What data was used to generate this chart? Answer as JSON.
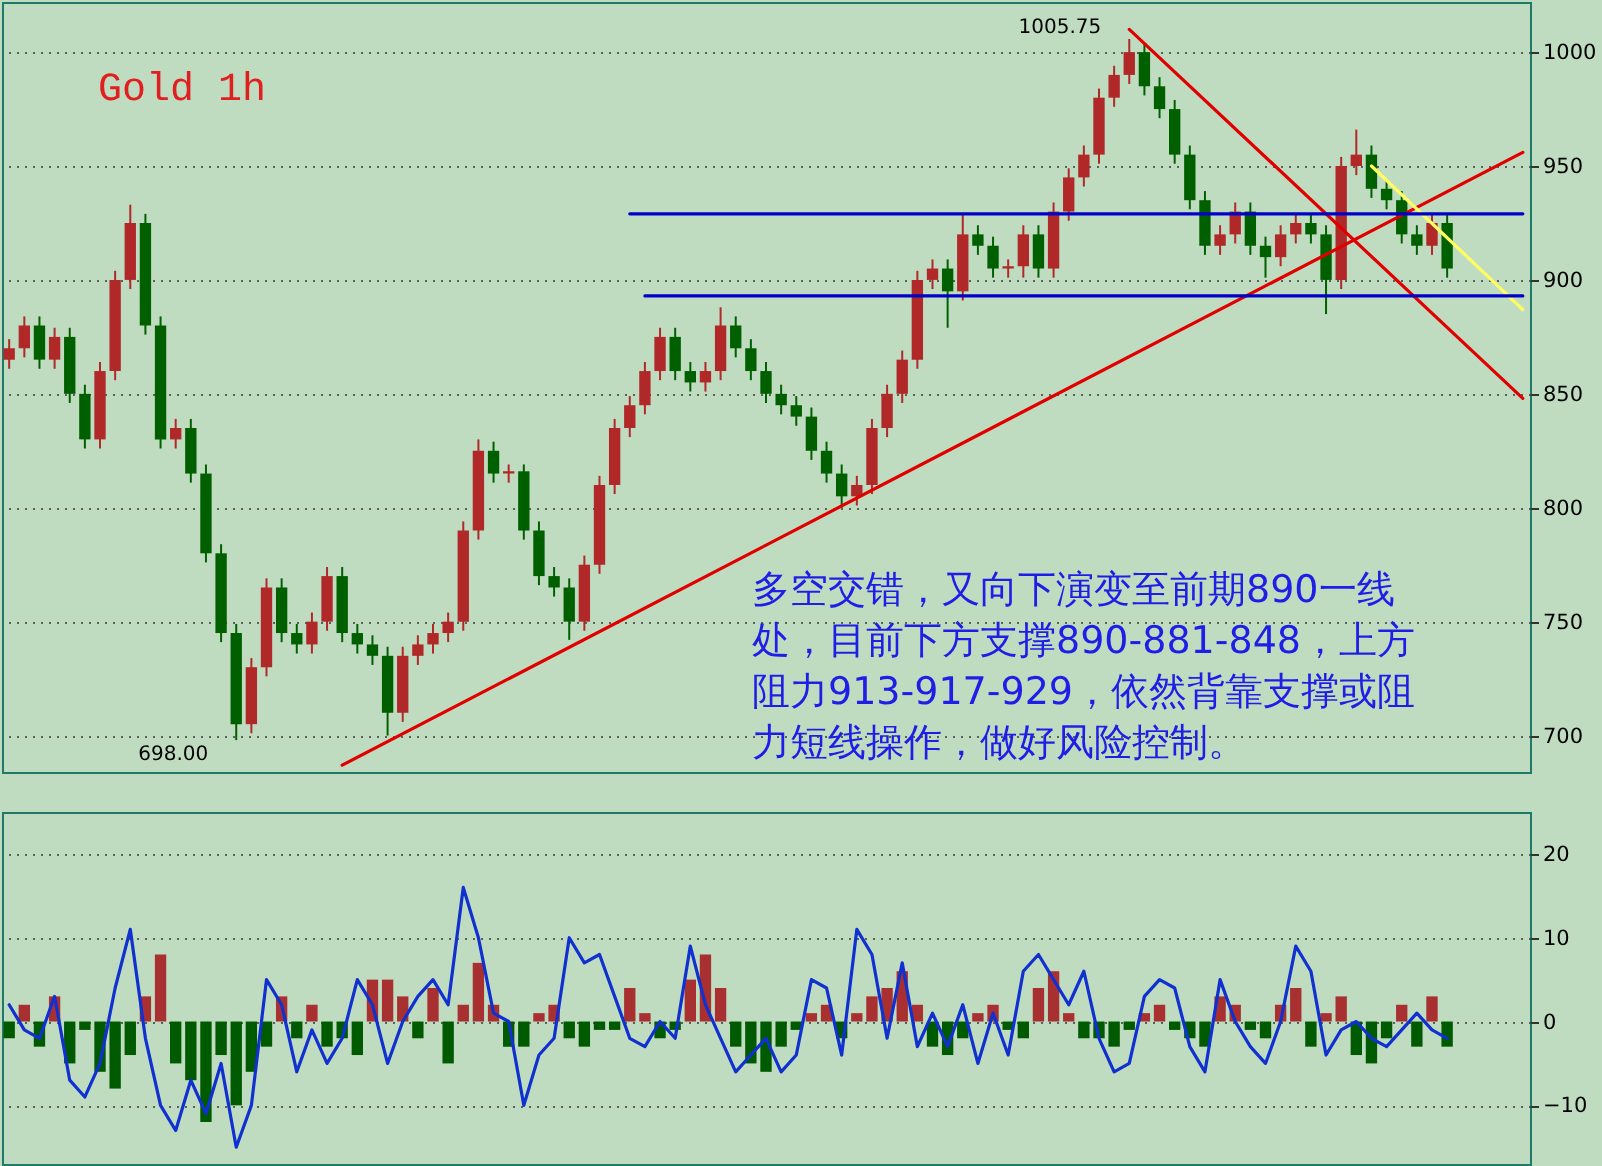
{
  "chart_data": [
    {
      "type": "candlestick",
      "categories": [
        null,
        null,
        null,
        null,
        null,
        null,
        null,
        null,
        null,
        null,
        null,
        null,
        null,
        null,
        null,
        null,
        null,
        null,
        null,
        null,
        null,
        null,
        null,
        null,
        null,
        null,
        null,
        null,
        null,
        null,
        null,
        null,
        null,
        null,
        null,
        null,
        null,
        null,
        null,
        null,
        null,
        null,
        null,
        null,
        null,
        null,
        null,
        null,
        null,
        null,
        null,
        null,
        null,
        null,
        null,
        null,
        null,
        null,
        null,
        null,
        null,
        null,
        null,
        null,
        null,
        null,
        null,
        null,
        null,
        null,
        null,
        null,
        null,
        null,
        null,
        null,
        null,
        null,
        null,
        null,
        null,
        null,
        null,
        null,
        null,
        null,
        null,
        null,
        null,
        null,
        null,
        null,
        null,
        null,
        null,
        null,
        null,
        null,
        null,
        null,
        null
      ],
      "ohlc": [
        [
          865,
          874,
          861,
          870
        ],
        [
          870,
          884,
          866,
          880
        ],
        [
          880,
          884,
          861,
          865
        ],
        [
          865,
          879,
          861,
          875
        ],
        [
          875,
          879,
          846,
          850
        ],
        [
          850,
          854,
          826,
          830
        ],
        [
          830,
          864,
          826,
          860
        ],
        [
          860,
          904,
          856,
          900
        ],
        [
          900,
          933,
          896,
          925
        ],
        [
          925,
          929,
          876,
          880
        ],
        [
          880,
          884,
          826,
          830
        ],
        [
          830,
          839,
          826,
          835
        ],
        [
          835,
          839,
          811,
          815
        ],
        [
          815,
          819,
          776,
          780
        ],
        [
          780,
          784,
          741,
          745
        ],
        [
          745,
          749,
          698,
          705
        ],
        [
          705,
          734,
          701,
          730
        ],
        [
          730,
          769,
          726,
          765
        ],
        [
          765,
          769,
          741,
          745
        ],
        [
          745,
          749,
          736,
          740
        ],
        [
          740,
          754,
          736,
          750
        ],
        [
          750,
          774,
          746,
          770
        ],
        [
          770,
          774,
          741,
          745
        ],
        [
          745,
          749,
          736,
          740
        ],
        [
          740,
          744,
          731,
          735
        ],
        [
          735,
          739,
          700,
          710
        ],
        [
          710,
          739,
          706,
          735
        ],
        [
          735,
          744,
          731,
          740
        ],
        [
          740,
          749,
          736,
          745
        ],
        [
          745,
          754,
          741,
          750
        ],
        [
          750,
          794,
          746,
          790
        ],
        [
          790,
          830,
          786,
          825
        ],
        [
          825,
          829,
          811,
          815
        ],
        [
          815,
          819,
          811,
          816
        ],
        [
          816,
          819,
          786,
          790
        ],
        [
          790,
          794,
          766,
          770
        ],
        [
          770,
          774,
          761,
          765
        ],
        [
          765,
          769,
          742,
          750
        ],
        [
          750,
          779,
          746,
          775
        ],
        [
          775,
          814,
          771,
          810
        ],
        [
          810,
          839,
          806,
          835
        ],
        [
          835,
          849,
          831,
          845
        ],
        [
          845,
          864,
          841,
          860
        ],
        [
          860,
          879,
          856,
          875
        ],
        [
          875,
          879,
          856,
          860
        ],
        [
          860,
          864,
          851,
          855
        ],
        [
          855,
          864,
          851,
          860
        ],
        [
          860,
          888,
          856,
          880
        ],
        [
          880,
          884,
          866,
          870
        ],
        [
          870,
          874,
          856,
          860
        ],
        [
          860,
          864,
          846,
          850
        ],
        [
          850,
          854,
          841,
          845
        ],
        [
          845,
          849,
          836,
          840
        ],
        [
          840,
          844,
          821,
          825
        ],
        [
          825,
          829,
          811,
          815
        ],
        [
          815,
          819,
          800,
          805
        ],
        [
          805,
          814,
          801,
          810
        ],
        [
          810,
          839,
          806,
          835
        ],
        [
          835,
          854,
          831,
          850
        ],
        [
          850,
          869,
          846,
          865
        ],
        [
          865,
          904,
          861,
          900
        ],
        [
          900,
          909,
          896,
          905
        ],
        [
          905,
          909,
          879,
          895
        ],
        [
          895,
          929,
          891,
          920
        ],
        [
          920,
          924,
          911,
          915
        ],
        [
          915,
          919,
          901,
          905
        ],
        [
          905,
          909,
          901,
          906
        ],
        [
          906,
          924,
          901,
          920
        ],
        [
          920,
          924,
          901,
          905
        ],
        [
          905,
          934,
          901,
          930
        ],
        [
          930,
          949,
          926,
          945
        ],
        [
          945,
          959,
          941,
          955
        ],
        [
          955,
          984,
          951,
          980
        ],
        [
          980,
          994,
          976,
          990
        ],
        [
          990,
          1005.75,
          986,
          1000
        ],
        [
          1000,
          1004,
          981,
          985
        ],
        [
          985,
          989,
          971,
          975
        ],
        [
          975,
          979,
          951,
          955
        ],
        [
          955,
          959,
          931,
          935
        ],
        [
          935,
          939,
          911,
          915
        ],
        [
          915,
          924,
          911,
          920
        ],
        [
          920,
          934,
          916,
          930
        ],
        [
          930,
          934,
          911,
          915
        ],
        [
          915,
          919,
          901,
          910
        ],
        [
          910,
          924,
          906,
          920
        ],
        [
          920,
          929,
          916,
          925
        ],
        [
          925,
          929,
          916,
          920
        ],
        [
          920,
          924,
          885,
          900
        ],
        [
          900,
          954,
          896,
          950
        ],
        [
          950,
          966,
          946,
          955
        ],
        [
          955,
          959,
          936,
          940
        ],
        [
          940,
          944,
          931,
          935
        ],
        [
          935,
          939,
          916,
          920
        ],
        [
          920,
          924,
          911,
          915
        ],
        [
          915,
          929,
          911,
          925
        ],
        [
          925,
          929,
          901,
          905
        ],
        null,
        null,
        null,
        null,
        null
      ],
      "series": [
        {
          "type": "line",
          "color": "#e00000",
          "values": [
            null,
            null,
            null,
            null,
            null,
            null,
            null,
            null,
            null,
            null,
            null,
            null,
            null,
            null,
            null,
            null,
            null,
            null,
            null,
            null,
            null,
            null,
            687,
            null,
            null,
            null,
            null,
            null,
            null,
            null,
            null,
            null,
            null,
            null,
            null,
            null,
            null,
            null,
            null,
            null,
            null,
            null,
            null,
            null,
            null,
            null,
            null,
            null,
            null,
            null,
            null,
            null,
            null,
            null,
            null,
            null,
            null,
            null,
            null,
            null,
            null,
            null,
            null,
            null,
            null,
            null,
            null,
            null,
            null,
            null,
            null,
            null,
            null,
            null,
            null,
            null,
            null,
            null,
            null,
            null,
            null,
            null,
            null,
            null,
            null,
            null,
            null,
            null,
            null,
            null,
            null,
            null,
            null,
            null,
            null,
            null,
            null,
            null,
            null,
            null,
            956
          ]
        },
        {
          "type": "line",
          "color": "#e00000",
          "values": [
            null,
            null,
            null,
            null,
            null,
            null,
            null,
            null,
            null,
            null,
            null,
            null,
            null,
            null,
            null,
            null,
            null,
            null,
            null,
            null,
            null,
            null,
            null,
            null,
            null,
            null,
            null,
            null,
            null,
            null,
            null,
            null,
            null,
            null,
            null,
            null,
            null,
            null,
            null,
            null,
            null,
            null,
            null,
            null,
            null,
            null,
            null,
            null,
            null,
            null,
            null,
            null,
            null,
            null,
            null,
            null,
            null,
            null,
            null,
            null,
            null,
            null,
            null,
            null,
            null,
            null,
            null,
            null,
            null,
            null,
            null,
            null,
            null,
            null,
            1010,
            null,
            null,
            null,
            null,
            null,
            null,
            null,
            null,
            null,
            null,
            null,
            null,
            null,
            null,
            null,
            null,
            null,
            null,
            null,
            null,
            null,
            null,
            null,
            null,
            null,
            848
          ]
        },
        {
          "type": "line",
          "color": "#ffff60",
          "values": [
            null,
            null,
            null,
            null,
            null,
            null,
            null,
            null,
            null,
            null,
            null,
            null,
            null,
            null,
            null,
            null,
            null,
            null,
            null,
            null,
            null,
            null,
            null,
            null,
            null,
            null,
            null,
            null,
            null,
            null,
            null,
            null,
            null,
            null,
            null,
            null,
            null,
            null,
            null,
            null,
            null,
            null,
            null,
            null,
            null,
            null,
            null,
            null,
            null,
            null,
            null,
            null,
            null,
            null,
            null,
            null,
            null,
            null,
            null,
            null,
            null,
            null,
            null,
            null,
            null,
            null,
            null,
            null,
            null,
            null,
            null,
            null,
            null,
            null,
            null,
            null,
            null,
            null,
            null,
            null,
            null,
            null,
            null,
            null,
            null,
            null,
            null,
            null,
            null,
            null,
            950,
            null,
            null,
            null,
            null,
            null,
            null,
            null,
            null,
            null,
            887
          ]
        },
        {
          "type": "line",
          "color": "#0000c8",
          "values": [
            null,
            null,
            null,
            null,
            null,
            null,
            null,
            null,
            null,
            null,
            null,
            null,
            null,
            null,
            null,
            null,
            null,
            null,
            null,
            null,
            null,
            null,
            null,
            null,
            null,
            null,
            null,
            null,
            null,
            null,
            null,
            null,
            null,
            null,
            null,
            null,
            null,
            null,
            null,
            null,
            null,
            929,
            null,
            null,
            null,
            null,
            null,
            null,
            null,
            null,
            null,
            null,
            null,
            null,
            null,
            null,
            null,
            null,
            null,
            null,
            null,
            null,
            null,
            null,
            null,
            null,
            null,
            null,
            null,
            null,
            null,
            null,
            null,
            null,
            null,
            null,
            null,
            null,
            null,
            null,
            null,
            null,
            null,
            null,
            null,
            null,
            null,
            null,
            null,
            null,
            null,
            null,
            null,
            null,
            null,
            null,
            null,
            null,
            null,
            null,
            929
          ]
        },
        {
          "type": "line",
          "color": "#0000c8",
          "values": [
            null,
            null,
            null,
            null,
            null,
            null,
            null,
            null,
            null,
            null,
            null,
            null,
            null,
            null,
            null,
            null,
            null,
            null,
            null,
            null,
            null,
            null,
            null,
            null,
            null,
            null,
            null,
            null,
            null,
            null,
            null,
            null,
            null,
            null,
            null,
            null,
            null,
            null,
            null,
            null,
            null,
            null,
            893,
            null,
            null,
            null,
            null,
            null,
            null,
            null,
            null,
            null,
            null,
            null,
            null,
            null,
            null,
            null,
            null,
            null,
            null,
            null,
            null,
            null,
            null,
            null,
            null,
            null,
            null,
            null,
            null,
            null,
            null,
            null,
            null,
            null,
            null,
            null,
            null,
            null,
            null,
            null,
            null,
            null,
            null,
            null,
            null,
            null,
            null,
            null,
            null,
            null,
            null,
            null,
            null,
            null,
            null,
            null,
            null,
            null,
            893
          ]
        }
      ],
      "ylim": [
        684,
        1022
      ],
      "yticks": [
        700,
        750,
        800,
        850,
        900,
        950,
        1000
      ],
      "grid": "y",
      "tick_labels": "y",
      "annotations": [
        "Gold 1h",
        "多空交错，又向下演变至前期890一线处，目前下方支撑890-881-848，上方阻力913-917-929，依然背靠支撑或阻力短线操作，做好风险控制。",
        "1005.75",
        "698.00"
      ]
    },
    {
      "type": "bar",
      "categories": [
        null,
        null,
        null,
        null,
        null,
        null,
        null,
        null,
        null,
        null,
        null,
        null,
        null,
        null,
        null,
        null,
        null,
        null,
        null,
        null,
        null,
        null,
        null,
        null,
        null,
        null,
        null,
        null,
        null,
        null,
        null,
        null,
        null,
        null,
        null,
        null,
        null,
        null,
        null,
        null,
        null,
        null,
        null,
        null,
        null,
        null,
        null,
        null,
        null,
        null,
        null,
        null,
        null,
        null,
        null,
        null,
        null,
        null,
        null,
        null,
        null,
        null,
        null,
        null,
        null,
        null,
        null,
        null,
        null,
        null,
        null,
        null,
        null,
        null,
        null,
        null,
        null,
        null,
        null,
        null,
        null,
        null,
        null,
        null,
        null,
        null,
        null,
        null,
        null,
        null,
        null,
        null,
        null,
        null,
        null,
        null,
        null,
        null,
        null,
        null,
        null
      ],
      "series": [
        {
          "color": "#a83030",
          "values": [
            null,
            2,
            null,
            3,
            null,
            null,
            null,
            null,
            null,
            3,
            8,
            null,
            null,
            null,
            null,
            null,
            null,
            null,
            3,
            null,
            2,
            null,
            null,
            null,
            5,
            5,
            3,
            null,
            4,
            null,
            2,
            7,
            2,
            null,
            null,
            1,
            2,
            null,
            null,
            null,
            null,
            4,
            1,
            null,
            null,
            5,
            8,
            4,
            null,
            null,
            null,
            null,
            null,
            1,
            2,
            null,
            1,
            3,
            4,
            6,
            2,
            null,
            null,
            null,
            1,
            2,
            null,
            null,
            4,
            6,
            1,
            null,
            null,
            null,
            null,
            1,
            2,
            null,
            null,
            null,
            3,
            2,
            null,
            null,
            2,
            4,
            null,
            1,
            3,
            null,
            null,
            null,
            2,
            null,
            3,
            null,
            null,
            null,
            null,
            null,
            null
          ]
        },
        {
          "color": "#005a00",
          "values": [
            -2,
            null,
            -3,
            null,
            -5,
            -1,
            -6,
            -8,
            -4,
            null,
            null,
            -5,
            -7,
            -12,
            -4,
            -10,
            -6,
            -3,
            null,
            -2,
            null,
            -3,
            -2,
            -4,
            null,
            null,
            null,
            -2,
            null,
            -5,
            null,
            null,
            null,
            -3,
            -3,
            null,
            null,
            -2,
            -3,
            -1,
            -1,
            null,
            null,
            -2,
            -1,
            null,
            null,
            null,
            -3,
            -5,
            -6,
            -3,
            -1,
            null,
            null,
            -2,
            null,
            null,
            null,
            null,
            null,
            -3,
            -4,
            -2,
            null,
            null,
            -1,
            -2,
            null,
            null,
            null,
            -2,
            -2,
            -3,
            -1,
            null,
            null,
            -1,
            -2,
            -3,
            null,
            null,
            -1,
            -2,
            null,
            null,
            -3,
            null,
            null,
            -4,
            -5,
            -2,
            null,
            -3,
            null,
            -3,
            null,
            null,
            null,
            null,
            null
          ]
        },
        {
          "type": "line",
          "color": "#1030d0",
          "values": [
            2,
            -1,
            -2,
            3,
            -7,
            -9,
            -5,
            4,
            11,
            -2,
            -10,
            -13,
            -7,
            -11,
            -5,
            -15,
            -10,
            5,
            2,
            -6,
            -1,
            -5,
            -2,
            5,
            2,
            -5,
            0,
            3,
            5,
            2,
            16,
            10,
            1,
            0,
            -10,
            -4,
            -2,
            10,
            7,
            8,
            3,
            -2,
            -3,
            0,
            -2,
            9,
            2,
            -2,
            -6,
            -4,
            -2,
            -6,
            -4,
            5,
            4,
            -4,
            11,
            8,
            -2,
            7,
            -3,
            1,
            -3,
            2,
            -5,
            1,
            -4,
            6,
            8,
            5,
            2,
            6,
            -2,
            -6,
            -5,
            3,
            5,
            4,
            -3,
            -6,
            5,
            0,
            -3,
            -5,
            0,
            9,
            6,
            -4,
            -1,
            0,
            -2,
            -3,
            -1,
            1,
            -1,
            -2,
            null,
            null,
            null,
            null,
            null
          ]
        }
      ],
      "ylim": [
        -17,
        25
      ],
      "yticks": [
        -10,
        0,
        10,
        20
      ],
      "grid": "y",
      "tick_labels": "y"
    }
  ]
}
